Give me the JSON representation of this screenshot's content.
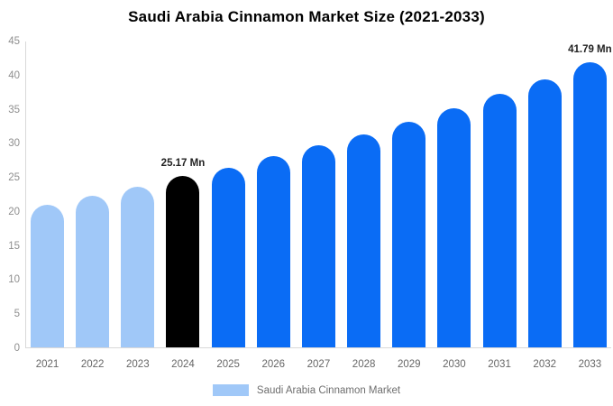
{
  "title": "Saudi Arabia Cinnamon Market Size (2021-2033)",
  "chart_data": {
    "type": "bar",
    "title": "Saudi Arabia Cinnamon Market Size (2021-2033)",
    "categories": [
      "2021",
      "2022",
      "2023",
      "2024",
      "2025",
      "2026",
      "2027",
      "2028",
      "2029",
      "2030",
      "2031",
      "2032",
      "2033"
    ],
    "values": [
      20.9,
      22.3,
      23.5,
      25.17,
      26.4,
      28.0,
      29.6,
      31.2,
      33.1,
      35.1,
      37.2,
      39.3,
      41.79
    ],
    "unit": "Mn",
    "series_name": "Saudi Arabia Cinnamon Market",
    "bar_colors": [
      "#a0c8f8",
      "#a0c8f8",
      "#a0c8f8",
      "#000000",
      "#0a6cf5",
      "#0a6cf5",
      "#0a6cf5",
      "#0a6cf5",
      "#0a6cf5",
      "#0a6cf5",
      "#0a6cf5",
      "#0a6cf5",
      "#0a6cf5"
    ],
    "annotations": [
      {
        "index": 3,
        "text": "25.17 Mn"
      },
      {
        "index": 12,
        "text": "41.79 Mn"
      }
    ],
    "ylim": [
      0,
      45
    ],
    "yticks": [
      0,
      5,
      10,
      15,
      20,
      25,
      30,
      35,
      40,
      45
    ],
    "grid": false,
    "legend_position": "bottom"
  },
  "legend": {
    "label": "Saudi Arabia Cinnamon Market",
    "swatch_color": "#a0c8f8"
  },
  "colors": {
    "historical_bar": "#a0c8f8",
    "highlight_bar": "#000000",
    "forecast_bar": "#0a6cf5",
    "axis_line": "#d9d9d9",
    "tick_text": "#8f8f8f",
    "category_text": "#666666",
    "value_label_text": "#222222",
    "legend_text": "#6e6e6e",
    "title_text": "#000000"
  }
}
